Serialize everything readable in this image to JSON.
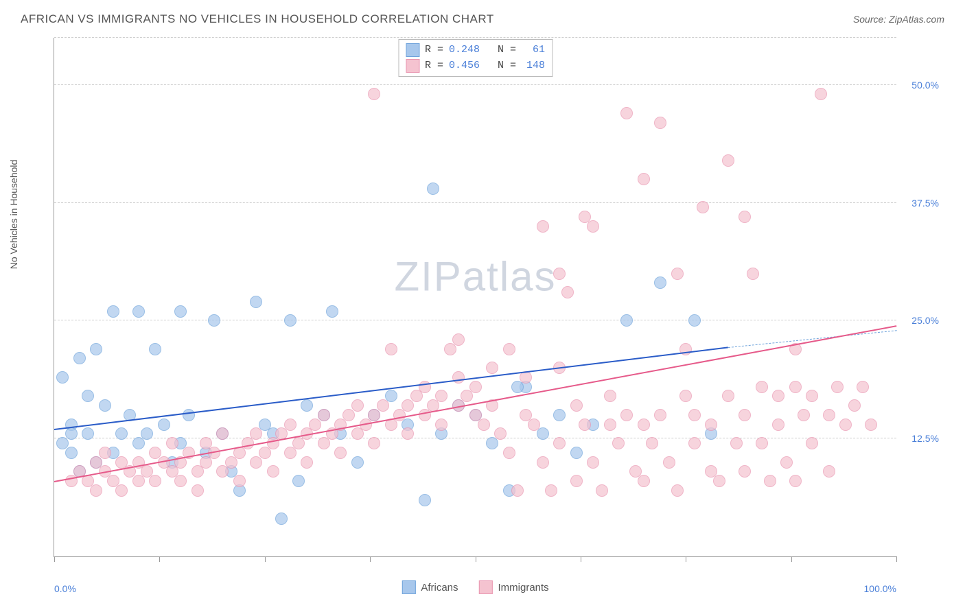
{
  "title": "AFRICAN VS IMMIGRANTS NO VEHICLES IN HOUSEHOLD CORRELATION CHART",
  "source_label": "Source: ",
  "source_value": "ZipAtlas.com",
  "y_axis_label": "No Vehicles in Household",
  "watermark_bold": "ZIP",
  "watermark_light": "atlas",
  "chart": {
    "type": "scatter",
    "background": "#ffffff",
    "grid_color": "#cccccc",
    "axis_color": "#999999",
    "text_color": "#555555",
    "tick_label_color": "#4a7fd8",
    "xlim": [
      0,
      100
    ],
    "ylim": [
      0,
      55
    ],
    "x_ticks": [
      0,
      12.5,
      25,
      37.5,
      50,
      62.5,
      75,
      87.5,
      100
    ],
    "x_tick_labels": {
      "0": "0.0%",
      "100": "100.0%"
    },
    "y_gridlines": [
      12.5,
      25,
      37.5,
      50,
      55
    ],
    "y_tick_labels": {
      "12.5": "12.5%",
      "25": "25.0%",
      "37.5": "37.5%",
      "50": "50.0%"
    },
    "point_radius": 9,
    "point_stroke_width": 1.5,
    "point_fill_opacity": 0.35
  },
  "series": [
    {
      "name": "Africans",
      "fill": "#a7c7ec",
      "stroke": "#6fa3db",
      "trend_color": "#2a5cc8",
      "trend_dash_color": "#6fa3db",
      "R": "0.248",
      "N": "61",
      "trend": {
        "x1": 0,
        "y1": 13.5,
        "x2": 80,
        "y2": 22.2,
        "dash_x2": 100,
        "dash_y2": 24.0
      },
      "points": [
        [
          1,
          19
        ],
        [
          1,
          12
        ],
        [
          2,
          14
        ],
        [
          2,
          11
        ],
        [
          2,
          13
        ],
        [
          3,
          9
        ],
        [
          3,
          21
        ],
        [
          4,
          17
        ],
        [
          4,
          13
        ],
        [
          5,
          10
        ],
        [
          5,
          22
        ],
        [
          6,
          16
        ],
        [
          7,
          26
        ],
        [
          7,
          11
        ],
        [
          8,
          13
        ],
        [
          9,
          15
        ],
        [
          10,
          26
        ],
        [
          10,
          12
        ],
        [
          11,
          13
        ],
        [
          12,
          22
        ],
        [
          13,
          14
        ],
        [
          14,
          10
        ],
        [
          15,
          26
        ],
        [
          15,
          12
        ],
        [
          16,
          15
        ],
        [
          18,
          11
        ],
        [
          19,
          25
        ],
        [
          20,
          13
        ],
        [
          21,
          9
        ],
        [
          22,
          7
        ],
        [
          24,
          27
        ],
        [
          25,
          14
        ],
        [
          26,
          13
        ],
        [
          27,
          4
        ],
        [
          28,
          25
        ],
        [
          29,
          8
        ],
        [
          30,
          16
        ],
        [
          32,
          15
        ],
        [
          33,
          26
        ],
        [
          34,
          13
        ],
        [
          36,
          10
        ],
        [
          38,
          15
        ],
        [
          40,
          17
        ],
        [
          42,
          14
        ],
        [
          44,
          6
        ],
        [
          45,
          39
        ],
        [
          46,
          13
        ],
        [
          48,
          16
        ],
        [
          50,
          15
        ],
        [
          52,
          12
        ],
        [
          54,
          7
        ],
        [
          56,
          18
        ],
        [
          58,
          13
        ],
        [
          60,
          15
        ],
        [
          62,
          11
        ],
        [
          55,
          18
        ],
        [
          64,
          14
        ],
        [
          68,
          25
        ],
        [
          72,
          29
        ],
        [
          76,
          25
        ],
        [
          78,
          13
        ]
      ]
    },
    {
      "name": "Immigrants",
      "fill": "#f5c3d0",
      "stroke": "#e995b0",
      "trend_color": "#e65a8a",
      "trend_dash_color": "#e995b0",
      "R": "0.456",
      "N": "148",
      "trend": {
        "x1": 0,
        "y1": 8.0,
        "x2": 100,
        "y2": 24.5
      },
      "points": [
        [
          2,
          8
        ],
        [
          3,
          9
        ],
        [
          4,
          8
        ],
        [
          5,
          10
        ],
        [
          5,
          7
        ],
        [
          6,
          9
        ],
        [
          6,
          11
        ],
        [
          7,
          8
        ],
        [
          8,
          10
        ],
        [
          8,
          7
        ],
        [
          9,
          9
        ],
        [
          10,
          8
        ],
        [
          10,
          10
        ],
        [
          11,
          9
        ],
        [
          12,
          11
        ],
        [
          12,
          8
        ],
        [
          13,
          10
        ],
        [
          14,
          9
        ],
        [
          14,
          12
        ],
        [
          15,
          10
        ],
        [
          15,
          8
        ],
        [
          16,
          11
        ],
        [
          17,
          9
        ],
        [
          17,
          7
        ],
        [
          18,
          10
        ],
        [
          18,
          12
        ],
        [
          19,
          11
        ],
        [
          20,
          9
        ],
        [
          20,
          13
        ],
        [
          21,
          10
        ],
        [
          22,
          11
        ],
        [
          22,
          8
        ],
        [
          23,
          12
        ],
        [
          24,
          10
        ],
        [
          24,
          13
        ],
        [
          25,
          11
        ],
        [
          26,
          12
        ],
        [
          26,
          9
        ],
        [
          27,
          13
        ],
        [
          28,
          11
        ],
        [
          28,
          14
        ],
        [
          29,
          12
        ],
        [
          30,
          13
        ],
        [
          30,
          10
        ],
        [
          31,
          14
        ],
        [
          32,
          12
        ],
        [
          32,
          15
        ],
        [
          33,
          13
        ],
        [
          34,
          14
        ],
        [
          34,
          11
        ],
        [
          35,
          15
        ],
        [
          36,
          13
        ],
        [
          36,
          16
        ],
        [
          37,
          14
        ],
        [
          38,
          15
        ],
        [
          38,
          12
        ],
        [
          39,
          16
        ],
        [
          40,
          14
        ],
        [
          40,
          22
        ],
        [
          41,
          15
        ],
        [
          42,
          16
        ],
        [
          42,
          13
        ],
        [
          43,
          17
        ],
        [
          44,
          15
        ],
        [
          44,
          18
        ],
        [
          45,
          16
        ],
        [
          46,
          17
        ],
        [
          46,
          14
        ],
        [
          47,
          22
        ],
        [
          48,
          16
        ],
        [
          48,
          19
        ],
        [
          49,
          17
        ],
        [
          50,
          18
        ],
        [
          50,
          15
        ],
        [
          51,
          14
        ],
        [
          52,
          20
        ],
        [
          52,
          16
        ],
        [
          53,
          13
        ],
        [
          54,
          22
        ],
        [
          54,
          11
        ],
        [
          55,
          7
        ],
        [
          56,
          19
        ],
        [
          56,
          15
        ],
        [
          57,
          14
        ],
        [
          58,
          35
        ],
        [
          58,
          10
        ],
        [
          59,
          7
        ],
        [
          60,
          20
        ],
        [
          60,
          12
        ],
        [
          61,
          28
        ],
        [
          62,
          16
        ],
        [
          62,
          8
        ],
        [
          63,
          14
        ],
        [
          64,
          35
        ],
        [
          64,
          10
        ],
        [
          65,
          7
        ],
        [
          66,
          14
        ],
        [
          66,
          17
        ],
        [
          67,
          12
        ],
        [
          68,
          15
        ],
        [
          68,
          47
        ],
        [
          69,
          9
        ],
        [
          70,
          14
        ],
        [
          70,
          8
        ],
        [
          71,
          12
        ],
        [
          72,
          46
        ],
        [
          72,
          15
        ],
        [
          73,
          10
        ],
        [
          74,
          30
        ],
        [
          74,
          7
        ],
        [
          75,
          17
        ],
        [
          76,
          12
        ],
        [
          76,
          15
        ],
        [
          77,
          37
        ],
        [
          78,
          9
        ],
        [
          78,
          14
        ],
        [
          79,
          8
        ],
        [
          80,
          17
        ],
        [
          80,
          42
        ],
        [
          81,
          12
        ],
        [
          82,
          15
        ],
        [
          82,
          9
        ],
        [
          83,
          30
        ],
        [
          84,
          18
        ],
        [
          84,
          12
        ],
        [
          85,
          8
        ],
        [
          86,
          17
        ],
        [
          86,
          14
        ],
        [
          87,
          10
        ],
        [
          88,
          18
        ],
        [
          88,
          8
        ],
        [
          89,
          15
        ],
        [
          90,
          17
        ],
        [
          90,
          12
        ],
        [
          91,
          49
        ],
        [
          92,
          15
        ],
        [
          92,
          9
        ],
        [
          93,
          18
        ],
        [
          94,
          14
        ],
        [
          95,
          16
        ],
        [
          96,
          18
        ],
        [
          97,
          14
        ],
        [
          82,
          36
        ],
        [
          70,
          40
        ],
        [
          60,
          30
        ],
        [
          63,
          36
        ],
        [
          38,
          49
        ],
        [
          75,
          22
        ],
        [
          88,
          22
        ],
        [
          48,
          23
        ]
      ]
    }
  ],
  "legend_bottom": [
    {
      "label": "Africans",
      "series": 0
    },
    {
      "label": "Immigrants",
      "series": 1
    }
  ]
}
